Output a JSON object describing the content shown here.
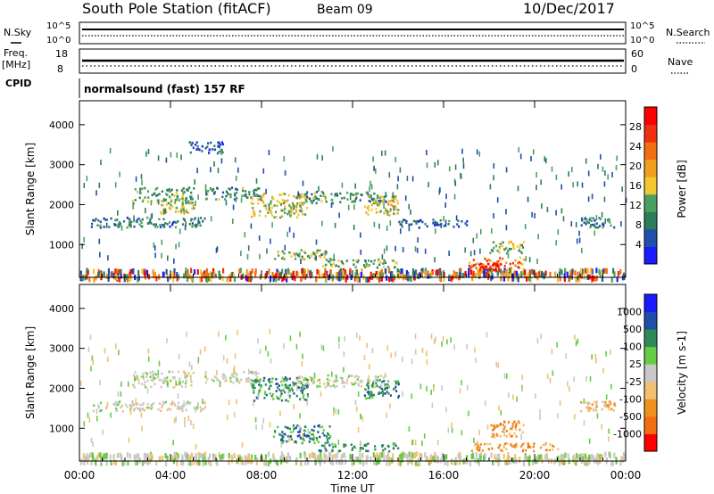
{
  "header": {
    "station": "South Pole Station (fitACF)",
    "beam": "Beam 09",
    "date": "10/Dec/2017"
  },
  "top_panels": {
    "nsky_label": "N.Sky",
    "nsky_ticks": [
      "10^5",
      "10^0"
    ],
    "nsearch_label": "N.Search",
    "nsearch_ticks": [
      "10^5",
      "10^0"
    ],
    "freq_label": "Freq.",
    "freq_unit": "[MHz]",
    "freq_ticks": [
      "18",
      "8"
    ],
    "nave_label": "Nave",
    "nave_ticks": [
      "60",
      "0"
    ],
    "cpid_label": "CPID",
    "cpid_text": "normalsound (fast) 157 RF"
  },
  "colors": {
    "power_scale": [
      "#1a1aff",
      "#1f4fa8",
      "#2e7d5a",
      "#4aa060",
      "#f2c830",
      "#f0a020",
      "#f07010",
      "#f03010",
      "#ff0000"
    ],
    "velocity_scale": [
      "#ff0000",
      "#f07010",
      "#f09020",
      "#f2c070",
      "#c8c8c8",
      "#66cc44",
      "#2e8a58",
      "#1f4fa8",
      "#1a1aff"
    ]
  },
  "chart_data": [
    {
      "type": "heatmap",
      "name": "power",
      "ylabel": "Slant Range [km]",
      "yticks": [
        "1000",
        "2000",
        "3000",
        "4000"
      ],
      "ytick_values": [
        1000,
        2000,
        3000,
        4000
      ],
      "ylim": [
        180,
        4600
      ],
      "xlim": [
        0,
        24
      ],
      "colorbar_label": "Power [dB]",
      "colorbar_ticks": [
        "4",
        "8",
        "12",
        "16",
        "20",
        "24",
        "28"
      ],
      "colorbar_values": [
        4,
        8,
        12,
        16,
        20,
        24,
        28
      ],
      "colorbar_range": [
        0,
        32
      ],
      "echo_regions": [
        {
          "t0": 0.5,
          "t1": 5.5,
          "r0": 1450,
          "r1": 1700,
          "v": 8
        },
        {
          "t0": 2.3,
          "t1": 5.0,
          "r0": 2050,
          "r1": 2450,
          "v": 12
        },
        {
          "t0": 3.5,
          "t1": 5.0,
          "r0": 1800,
          "r1": 2100,
          "v": 16
        },
        {
          "t0": 5.5,
          "t1": 8.0,
          "r0": 2150,
          "r1": 2450,
          "v": 10
        },
        {
          "t0": 4.8,
          "t1": 6.3,
          "r0": 3300,
          "r1": 3600,
          "v": 6
        },
        {
          "t0": 7.5,
          "t1": 10.0,
          "r0": 1700,
          "r1": 2300,
          "v": 16
        },
        {
          "t0": 9.5,
          "t1": 13.5,
          "r0": 2050,
          "r1": 2350,
          "v": 10
        },
        {
          "t0": 12.5,
          "t1": 14.0,
          "r0": 1750,
          "r1": 2250,
          "v": 16
        },
        {
          "t0": 8.5,
          "t1": 11.0,
          "r0": 650,
          "r1": 900,
          "v": 14
        },
        {
          "t0": 10.5,
          "t1": 14.0,
          "r0": 450,
          "r1": 650,
          "v": 12
        },
        {
          "t0": 14.0,
          "t1": 17.0,
          "r0": 1450,
          "r1": 1650,
          "v": 6
        },
        {
          "t0": 17.0,
          "t1": 19.5,
          "r0": 250,
          "r1": 700,
          "v": 22
        },
        {
          "t0": 17.5,
          "t1": 18.5,
          "r0": 350,
          "r1": 550,
          "v": 30
        },
        {
          "t0": 18.0,
          "t1": 19.5,
          "r0": 800,
          "r1": 1100,
          "v": 14
        },
        {
          "t0": 22.0,
          "t1": 23.5,
          "r0": 1450,
          "r1": 1700,
          "v": 8
        },
        {
          "t0": 0.0,
          "t1": 24.0,
          "r0": 180,
          "r1": 420,
          "v": 18
        }
      ]
    },
    {
      "type": "heatmap",
      "name": "velocity",
      "ylabel": "Slant Range [km]",
      "yticks": [
        "1000",
        "2000",
        "3000",
        "4000"
      ],
      "ytick_values": [
        1000,
        2000,
        3000,
        4000
      ],
      "ylim": [
        180,
        4600
      ],
      "xlim": [
        0,
        24
      ],
      "xlabel": "Time UT",
      "xticks": [
        "00:00",
        "04:00",
        "08:00",
        "12:00",
        "16:00",
        "20:00",
        "00:00"
      ],
      "xtick_values": [
        0,
        4,
        8,
        12,
        16,
        20,
        24
      ],
      "colorbar_label": "Velocity [m s-1]",
      "colorbar_ticks": [
        "-1000",
        "-500",
        "-100",
        "-25",
        "25",
        "100",
        "500",
        "1000"
      ],
      "echo_regions": [
        {
          "t0": 0.5,
          "t1": 5.5,
          "r0": 1450,
          "r1": 1700,
          "v": 4
        },
        {
          "t0": 2.3,
          "t1": 5.0,
          "r0": 2050,
          "r1": 2450,
          "v": 4
        },
        {
          "t0": 5.5,
          "t1": 8.0,
          "r0": 2150,
          "r1": 2450,
          "v": 4
        },
        {
          "t0": 7.5,
          "t1": 10.0,
          "r0": 1700,
          "r1": 2300,
          "v": 6
        },
        {
          "t0": 9.5,
          "t1": 13.5,
          "r0": 2050,
          "r1": 2350,
          "v": 4
        },
        {
          "t0": 12.5,
          "t1": 14.0,
          "r0": 1750,
          "r1": 2250,
          "v": 6
        },
        {
          "t0": 8.5,
          "t1": 11.0,
          "r0": 650,
          "r1": 1100,
          "v": 6
        },
        {
          "t0": 10.5,
          "t1": 14.0,
          "r0": 450,
          "r1": 650,
          "v": 6
        },
        {
          "t0": 17.0,
          "t1": 21.0,
          "r0": 450,
          "r1": 650,
          "v": 2
        },
        {
          "t0": 18.0,
          "t1": 19.5,
          "r0": 800,
          "r1": 1200,
          "v": 2
        },
        {
          "t0": 22.0,
          "t1": 23.5,
          "r0": 1450,
          "r1": 1700,
          "v": 3
        },
        {
          "t0": 0.0,
          "t1": 24.0,
          "r0": 180,
          "r1": 420,
          "v": 4
        }
      ]
    }
  ]
}
